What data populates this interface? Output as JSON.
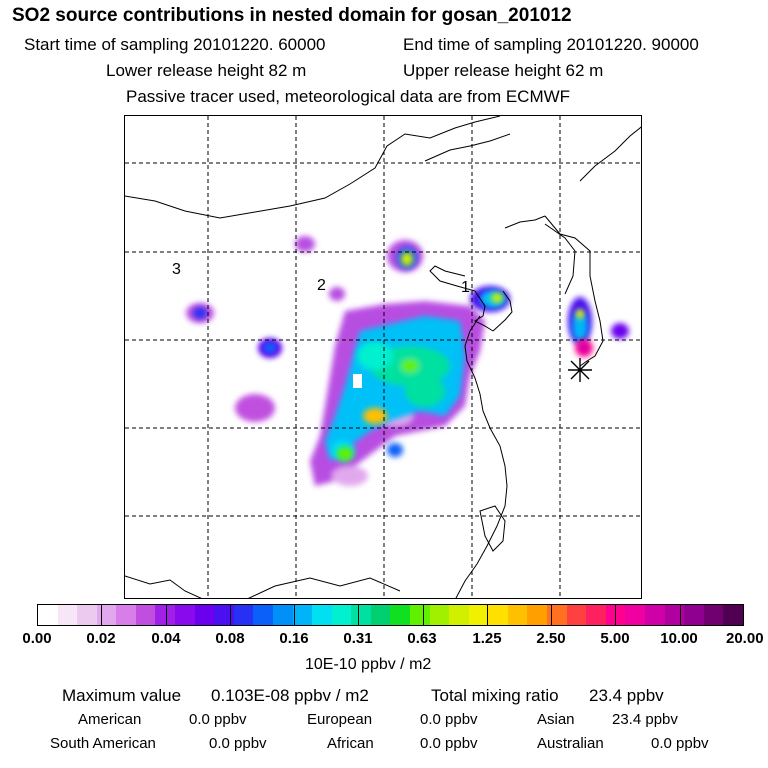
{
  "title": "SO2 source contributions in nested domain for gosan_201012",
  "header": {
    "start_label": "Start time of sampling 20101220. 60000",
    "end_label": "End time of sampling 20101220. 90000",
    "lower_label": "Lower release height   82 m",
    "upper_label": "Upper release height   62 m",
    "tracer_line": "Passive tracer used, meteorological data are from ECMWF"
  },
  "map": {
    "region_labels": [
      "1",
      "2",
      "3"
    ],
    "receptor_marker": "asterisk-icon"
  },
  "colorbar": {
    "ticks": [
      "0.00",
      "0.02",
      "0.04",
      "0.08",
      "0.16",
      "0.31",
      "0.63",
      "1.25",
      "2.50",
      "5.00",
      "10.00",
      "20.00"
    ],
    "units": "10E-10 ppbv / m2",
    "colors": [
      "#ffffff",
      "#f6e6f6",
      "#eccaf0",
      "#e2a8ee",
      "#d77ee8",
      "#c04fe0",
      "#a020e8",
      "#8a0aee",
      "#6a00ee",
      "#4a10f0",
      "#2830f4",
      "#0a60f8",
      "#0090f8",
      "#00b4f8",
      "#00e0f0",
      "#00f0d0",
      "#00e0a0",
      "#00d070",
      "#10e020",
      "#60f000",
      "#a0f000",
      "#d0f000",
      "#f0f000",
      "#ffe000",
      "#ffc000",
      "#ffa000",
      "#ff7020",
      "#ff4040",
      "#ff2060",
      "#ff0090",
      "#f000a0",
      "#d000a8",
      "#b000a0",
      "#900090",
      "#700070",
      "#500050"
    ]
  },
  "stats": {
    "maximum_label": "Maximum value",
    "maximum_value": "0.103E-08 ppbv / m2",
    "total_label": "Total mixing ratio",
    "total_value": "23.4 ppbv",
    "rows": [
      [
        {
          "name": "American",
          "value": "0.0 ppbv"
        },
        {
          "name": "European",
          "value": "0.0 ppbv"
        },
        {
          "name": "Asian",
          "value": "23.4 ppbv"
        }
      ],
      [
        {
          "name": "South American",
          "value": "0.0 ppbv"
        },
        {
          "name": "African",
          "value": "0.0 ppbv"
        },
        {
          "name": "Australian",
          "value": "0.0 ppbv"
        }
      ]
    ]
  }
}
